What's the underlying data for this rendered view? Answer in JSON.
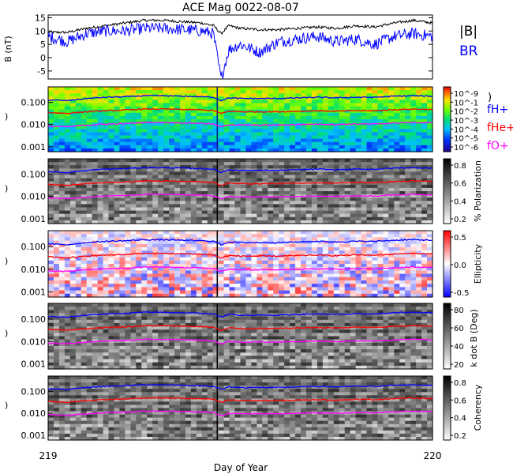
{
  "chart_data": {
    "type": "line",
    "title": "ACE Mag 0022-08-07",
    "xlabel": "Day of Year",
    "x_ticks": [
      "219",
      "220"
    ],
    "xlim": [
      219,
      220
    ],
    "panels": [
      {
        "id": "field",
        "kind": "line",
        "ylabel": "B (nT)",
        "ylim": [
          -8,
          16
        ],
        "y_ticks": [
          "15",
          "10",
          "5",
          "0",
          "-5"
        ],
        "y_tick_values": [
          15,
          10,
          5,
          0,
          -5
        ],
        "legend": [
          "|B|",
          "BR"
        ],
        "series": [
          {
            "name": "|B|",
            "color": "#000000",
            "x": [
              219.0,
              219.05,
              219.1,
              219.15,
              219.2,
              219.25,
              219.3,
              219.35,
              219.4,
              219.43,
              219.45,
              219.47,
              219.5,
              219.55,
              219.6,
              219.65,
              219.7,
              219.75,
              219.8,
              219.85,
              219.9,
              219.95,
              220.0
            ],
            "values": [
              9.5,
              9.5,
              11,
              12,
              13,
              14,
              14,
              13.5,
              13,
              12,
              9,
              12,
              11,
              10.5,
              10.5,
              11,
              11.5,
              11,
              12,
              11.5,
              13,
              14,
              13
            ]
          },
          {
            "name": "BR",
            "color": "#0000ff",
            "x": [
              219.0,
              219.05,
              219.1,
              219.15,
              219.2,
              219.25,
              219.3,
              219.35,
              219.4,
              219.43,
              219.45,
              219.47,
              219.5,
              219.55,
              219.6,
              219.65,
              219.7,
              219.75,
              219.8,
              219.85,
              219.9,
              219.95,
              220.0
            ],
            "values": [
              8,
              6,
              9,
              10,
              10,
              11,
              11,
              10.5,
              10,
              9,
              -8,
              3,
              5,
              2,
              6,
              7,
              8,
              6,
              7,
              5,
              8,
              9,
              8
            ]
          }
        ]
      },
      {
        "id": "power",
        "kind": "spectrogram",
        "palette": "rainbow",
        "ylabel_ticks": [
          "0.100",
          "0.010",
          "0.001"
        ],
        "colorbar_ticks": [
          "10^-9",
          "10^-1",
          "10^-2",
          "10^-3",
          "10^-4",
          "10^-5",
          "10^-6"
        ],
        "legend": [
          "fH+",
          "fHe+",
          "fO+"
        ]
      },
      {
        "id": "polarization",
        "kind": "spectrogram",
        "palette": "gray",
        "ylabel_ticks": [
          "0.100",
          "0.010",
          "0.001"
        ],
        "colorbar_label": "% Polarization",
        "colorbar_ticks": [
          "0.8",
          "0.6",
          "0.4",
          "0.2"
        ]
      },
      {
        "id": "ellipticity",
        "kind": "spectrogram",
        "palette": "bwr",
        "ylabel_ticks": [
          "0.100",
          "0.010",
          "0.001"
        ],
        "colorbar_label": "Ellipticity",
        "colorbar_ticks": [
          "0.5",
          "0.0",
          "-0.5"
        ]
      },
      {
        "id": "kdotb",
        "kind": "spectrogram",
        "palette": "gray",
        "ylabel_ticks": [
          "0.100",
          "0.010",
          "0.001"
        ],
        "colorbar_label": "k dot B (Deg)",
        "colorbar_ticks": [
          "80",
          "60",
          "40",
          "20"
        ]
      },
      {
        "id": "coherency",
        "kind": "spectrogram",
        "palette": "gray",
        "ylabel_ticks": [
          "0.100",
          "0.010",
          "0.001"
        ],
        "colorbar_label": "Coherency",
        "colorbar_ticks": [
          "0.8",
          "0.6",
          "0.4",
          "0.2"
        ]
      }
    ],
    "gyrofrequency_lines": [
      {
        "name": "fH+",
        "color": "#0000ff",
        "values_hz": [
          0.13,
          0.12,
          0.15,
          0.17,
          0.18,
          0.2,
          0.2,
          0.19,
          0.18,
          0.17,
          0.12,
          0.16,
          0.15,
          0.15,
          0.15,
          0.16,
          0.17,
          0.16,
          0.17,
          0.17,
          0.19,
          0.2,
          0.19
        ]
      },
      {
        "name": "fHe+",
        "color": "#ff0000",
        "values_hz": [
          0.035,
          0.032,
          0.038,
          0.042,
          0.045,
          0.05,
          0.05,
          0.048,
          0.046,
          0.043,
          0.031,
          0.04,
          0.038,
          0.038,
          0.038,
          0.04,
          0.042,
          0.04,
          0.043,
          0.042,
          0.047,
          0.05,
          0.048
        ]
      },
      {
        "name": "fO+",
        "color": "#ff00ff",
        "values_hz": [
          0.0085,
          0.008,
          0.0095,
          0.0105,
          0.011,
          0.0125,
          0.0125,
          0.012,
          0.0115,
          0.0105,
          0.0078,
          0.01,
          0.0095,
          0.0095,
          0.0095,
          0.01,
          0.0105,
          0.01,
          0.0107,
          0.0105,
          0.0118,
          0.0125,
          0.012
        ]
      }
    ],
    "gyro_x": [
      219.0,
      219.05,
      219.1,
      219.15,
      219.2,
      219.25,
      219.3,
      219.35,
      219.4,
      219.43,
      219.45,
      219.47,
      219.5,
      219.55,
      219.6,
      219.65,
      219.7,
      219.75,
      219.8,
      219.85,
      219.9,
      219.95,
      220.0
    ],
    "freq_ylim_hz": [
      0.0006,
      0.5
    ]
  }
}
